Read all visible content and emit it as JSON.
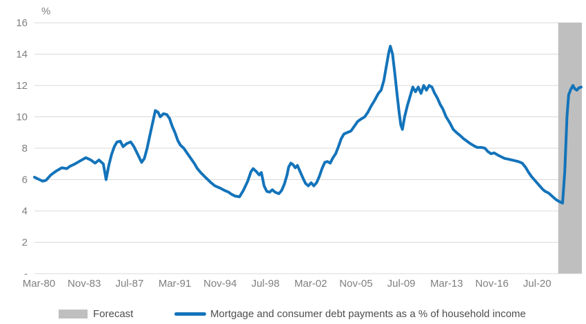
{
  "legend": {
    "forecast_label": "Forecast",
    "series_label": "Mortgage and consumer debt payments as a % of household income"
  },
  "colors": {
    "line": "#1373ba",
    "forecast_band": "#bfbfbf",
    "gridline": "#d9d9d9",
    "axis_text": "#7f7f7f",
    "legend_text": "#4d4d4d"
  },
  "chart_data": {
    "type": "line",
    "title": "",
    "ylabel_unit": "%",
    "ylim": [
      0,
      16
    ],
    "grid": "horizontal",
    "legend_position": "bottom",
    "y_ticks": [
      {
        "label": "16",
        "value": 16
      },
      {
        "label": "14",
        "value": 14
      },
      {
        "label": "12",
        "value": 12
      },
      {
        "label": "10",
        "value": 10
      },
      {
        "label": "8",
        "value": 8
      },
      {
        "label": "6",
        "value": 6
      },
      {
        "label": "4",
        "value": 4
      },
      {
        "label": "2",
        "value": 2
      },
      {
        "label": "-",
        "value": 0
      }
    ],
    "x_tick_labels": [
      "Mar-80",
      "Nov-83",
      "Jul-87",
      "Mar-91",
      "Nov-94",
      "Jul-98",
      "Mar-02",
      "Nov-05",
      "Jul-09",
      "Mar-13",
      "Nov-16",
      "Jul-20"
    ],
    "forecast_band": {
      "label": "Forecast",
      "t_start": 0.958,
      "t_end": 1.0
    },
    "series": [
      {
        "name": "Mortgage and consumer debt payments as a % of household income",
        "points": [
          [
            0.0,
            6.15
          ],
          [
            0.009,
            6.0
          ],
          [
            0.015,
            5.9
          ],
          [
            0.021,
            5.95
          ],
          [
            0.03,
            6.3
          ],
          [
            0.04,
            6.55
          ],
          [
            0.05,
            6.75
          ],
          [
            0.059,
            6.7
          ],
          [
            0.065,
            6.85
          ],
          [
            0.074,
            7.0
          ],
          [
            0.084,
            7.2
          ],
          [
            0.094,
            7.4
          ],
          [
            0.103,
            7.25
          ],
          [
            0.111,
            7.05
          ],
          [
            0.118,
            7.25
          ],
          [
            0.126,
            7.0
          ],
          [
            0.131,
            6.0
          ],
          [
            0.136,
            6.9
          ],
          [
            0.141,
            7.6
          ],
          [
            0.146,
            8.1
          ],
          [
            0.151,
            8.4
          ],
          [
            0.157,
            8.45
          ],
          [
            0.162,
            8.1
          ],
          [
            0.169,
            8.3
          ],
          [
            0.176,
            8.4
          ],
          [
            0.182,
            8.1
          ],
          [
            0.189,
            7.6
          ],
          [
            0.196,
            7.1
          ],
          [
            0.201,
            7.35
          ],
          [
            0.206,
            8.0
          ],
          [
            0.211,
            8.8
          ],
          [
            0.216,
            9.6
          ],
          [
            0.221,
            10.4
          ],
          [
            0.226,
            10.3
          ],
          [
            0.23,
            10.0
          ],
          [
            0.236,
            10.2
          ],
          [
            0.242,
            10.15
          ],
          [
            0.247,
            9.9
          ],
          [
            0.252,
            9.4
          ],
          [
            0.257,
            9.0
          ],
          [
            0.262,
            8.5
          ],
          [
            0.267,
            8.2
          ],
          [
            0.273,
            8.0
          ],
          [
            0.279,
            7.7
          ],
          [
            0.286,
            7.35
          ],
          [
            0.292,
            7.05
          ],
          [
            0.298,
            6.7
          ],
          [
            0.304,
            6.45
          ],
          [
            0.311,
            6.2
          ],
          [
            0.317,
            6.0
          ],
          [
            0.323,
            5.8
          ],
          [
            0.33,
            5.6
          ],
          [
            0.34,
            5.45
          ],
          [
            0.348,
            5.3
          ],
          [
            0.355,
            5.2
          ],
          [
            0.361,
            5.05
          ],
          [
            0.367,
            4.95
          ],
          [
            0.375,
            4.9
          ],
          [
            0.382,
            5.3
          ],
          [
            0.39,
            5.9
          ],
          [
            0.396,
            6.5
          ],
          [
            0.4,
            6.7
          ],
          [
            0.406,
            6.5
          ],
          [
            0.411,
            6.3
          ],
          [
            0.415,
            6.45
          ],
          [
            0.42,
            5.6
          ],
          [
            0.425,
            5.25
          ],
          [
            0.43,
            5.2
          ],
          [
            0.435,
            5.35
          ],
          [
            0.44,
            5.2
          ],
          [
            0.447,
            5.1
          ],
          [
            0.452,
            5.3
          ],
          [
            0.457,
            5.7
          ],
          [
            0.462,
            6.3
          ],
          [
            0.465,
            6.8
          ],
          [
            0.469,
            7.05
          ],
          [
            0.473,
            6.95
          ],
          [
            0.477,
            6.75
          ],
          [
            0.481,
            6.9
          ],
          [
            0.486,
            6.5
          ],
          [
            0.491,
            6.1
          ],
          [
            0.496,
            5.75
          ],
          [
            0.501,
            5.6
          ],
          [
            0.506,
            5.8
          ],
          [
            0.511,
            5.6
          ],
          [
            0.516,
            5.8
          ],
          [
            0.521,
            6.2
          ],
          [
            0.526,
            6.7
          ],
          [
            0.531,
            7.1
          ],
          [
            0.536,
            7.15
          ],
          [
            0.541,
            7.05
          ],
          [
            0.546,
            7.4
          ],
          [
            0.551,
            7.65
          ],
          [
            0.556,
            8.1
          ],
          [
            0.561,
            8.6
          ],
          [
            0.566,
            8.9
          ],
          [
            0.572,
            9.0
          ],
          [
            0.579,
            9.1
          ],
          [
            0.585,
            9.4
          ],
          [
            0.591,
            9.7
          ],
          [
            0.597,
            9.85
          ],
          [
            0.604,
            10.0
          ],
          [
            0.61,
            10.3
          ],
          [
            0.616,
            10.7
          ],
          [
            0.623,
            11.1
          ],
          [
            0.629,
            11.5
          ],
          [
            0.634,
            11.7
          ],
          [
            0.639,
            12.3
          ],
          [
            0.644,
            13.3
          ],
          [
            0.648,
            14.1
          ],
          [
            0.651,
            14.5
          ],
          [
            0.655,
            14.0
          ],
          [
            0.659,
            12.8
          ],
          [
            0.663,
            11.5
          ],
          [
            0.667,
            10.3
          ],
          [
            0.67,
            9.5
          ],
          [
            0.673,
            9.2
          ],
          [
            0.677,
            10.0
          ],
          [
            0.682,
            10.7
          ],
          [
            0.687,
            11.3
          ],
          [
            0.692,
            11.9
          ],
          [
            0.697,
            11.6
          ],
          [
            0.702,
            11.9
          ],
          [
            0.707,
            11.5
          ],
          [
            0.712,
            12.0
          ],
          [
            0.717,
            11.7
          ],
          [
            0.722,
            12.0
          ],
          [
            0.727,
            11.9
          ],
          [
            0.732,
            11.5
          ],
          [
            0.737,
            11.2
          ],
          [
            0.742,
            10.8
          ],
          [
            0.747,
            10.5
          ],
          [
            0.753,
            10.0
          ],
          [
            0.76,
            9.6
          ],
          [
            0.766,
            9.2
          ],
          [
            0.772,
            9.0
          ],
          [
            0.779,
            8.8
          ],
          [
            0.785,
            8.6
          ],
          [
            0.791,
            8.45
          ],
          [
            0.797,
            8.3
          ],
          [
            0.804,
            8.15
          ],
          [
            0.81,
            8.05
          ],
          [
            0.818,
            8.05
          ],
          [
            0.824,
            8.0
          ],
          [
            0.829,
            7.8
          ],
          [
            0.835,
            7.65
          ],
          [
            0.841,
            7.7
          ],
          [
            0.848,
            7.55
          ],
          [
            0.854,
            7.45
          ],
          [
            0.86,
            7.35
          ],
          [
            0.867,
            7.3
          ],
          [
            0.873,
            7.25
          ],
          [
            0.879,
            7.2
          ],
          [
            0.885,
            7.15
          ],
          [
            0.892,
            7.05
          ],
          [
            0.898,
            6.8
          ],
          [
            0.904,
            6.45
          ],
          [
            0.909,
            6.2
          ],
          [
            0.914,
            6.0
          ],
          [
            0.919,
            5.8
          ],
          [
            0.924,
            5.6
          ],
          [
            0.929,
            5.4
          ],
          [
            0.934,
            5.25
          ],
          [
            0.94,
            5.15
          ],
          [
            0.945,
            5.0
          ],
          [
            0.95,
            4.85
          ],
          [
            0.955,
            4.7
          ],
          [
            0.96,
            4.6
          ],
          [
            0.966,
            4.5
          ],
          [
            0.97,
            6.5
          ],
          [
            0.974,
            10.0
          ],
          [
            0.977,
            11.4
          ],
          [
            0.981,
            11.75
          ],
          [
            0.985,
            12.0
          ],
          [
            0.988,
            11.8
          ],
          [
            0.992,
            11.7
          ],
          [
            0.996,
            11.85
          ],
          [
            1.0,
            11.9
          ]
        ]
      }
    ]
  }
}
